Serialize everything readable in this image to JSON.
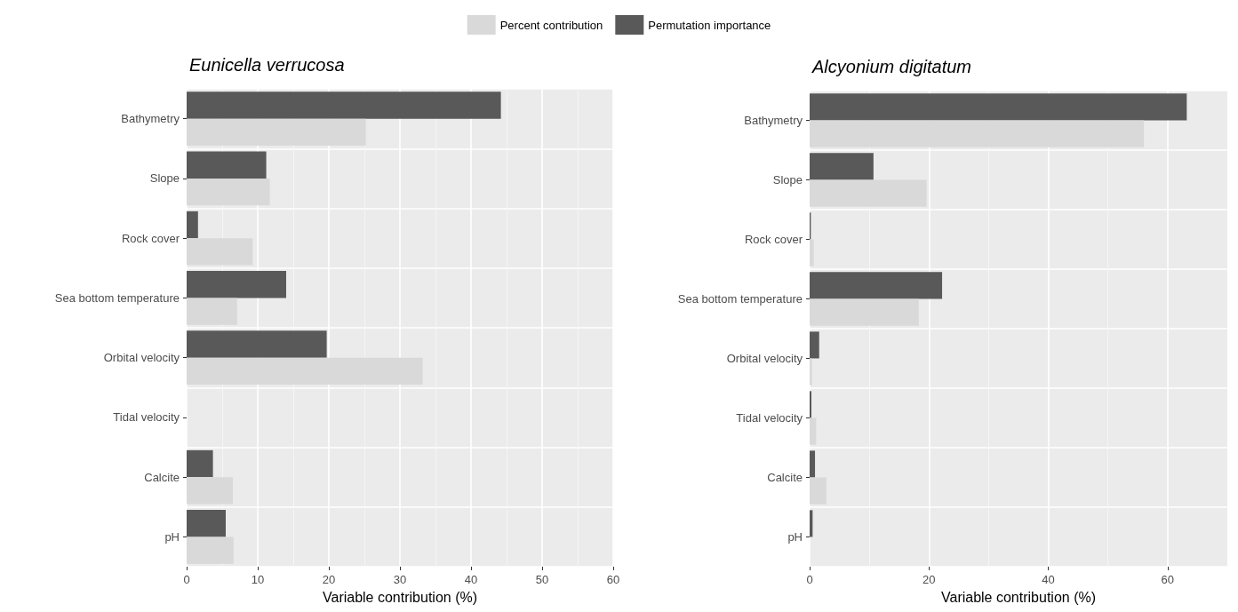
{
  "chart_data": [
    {
      "type": "bar",
      "orientation": "horizontal",
      "title": "Eunicella verrucosa",
      "xlabel": "Variable contribution (%)",
      "legend": "top",
      "categories": [
        "Bathymetry",
        "Slope",
        "Rock cover",
        "Sea bottom temperature",
        "Orbital velocity",
        "Tidal velocity",
        "Calcite",
        "pH"
      ],
      "series": [
        {
          "name": "Percent contribution",
          "color": "#d9d9d9",
          "values": [
            25.2,
            11.7,
            9.3,
            7.1,
            33.2,
            0,
            6.5,
            6.6
          ]
        },
        {
          "name": "Permutation importance",
          "color": "#595959",
          "values": [
            44.2,
            11.2,
            1.6,
            14.0,
            19.7,
            0,
            3.7,
            5.5
          ]
        }
      ],
      "xlim": [
        0,
        60
      ],
      "xticks": [
        0,
        10,
        20,
        30,
        40,
        50,
        60
      ],
      "grid": true
    },
    {
      "type": "bar",
      "orientation": "horizontal",
      "title": "Alcyonium digitatum",
      "xlabel": "Variable contribution (%)",
      "categories": [
        "Bathymetry",
        "Slope",
        "Rock cover",
        "Sea bottom temperature",
        "Orbital velocity",
        "Tidal velocity",
        "Calcite",
        "pH"
      ],
      "series": [
        {
          "name": "Percent contribution",
          "color": "#d9d9d9",
          "values": [
            56.0,
            19.6,
            0.7,
            18.3,
            0.4,
            1.1,
            2.8,
            null
          ]
        },
        {
          "name": "Permutation importance",
          "color": "#595959",
          "values": [
            63.2,
            10.7,
            0.2,
            22.2,
            1.6,
            0.3,
            0.9,
            0.5
          ]
        }
      ],
      "xlim": [
        0,
        70
      ],
      "xticks": [
        0,
        20,
        40,
        60
      ],
      "grid": true
    }
  ]
}
